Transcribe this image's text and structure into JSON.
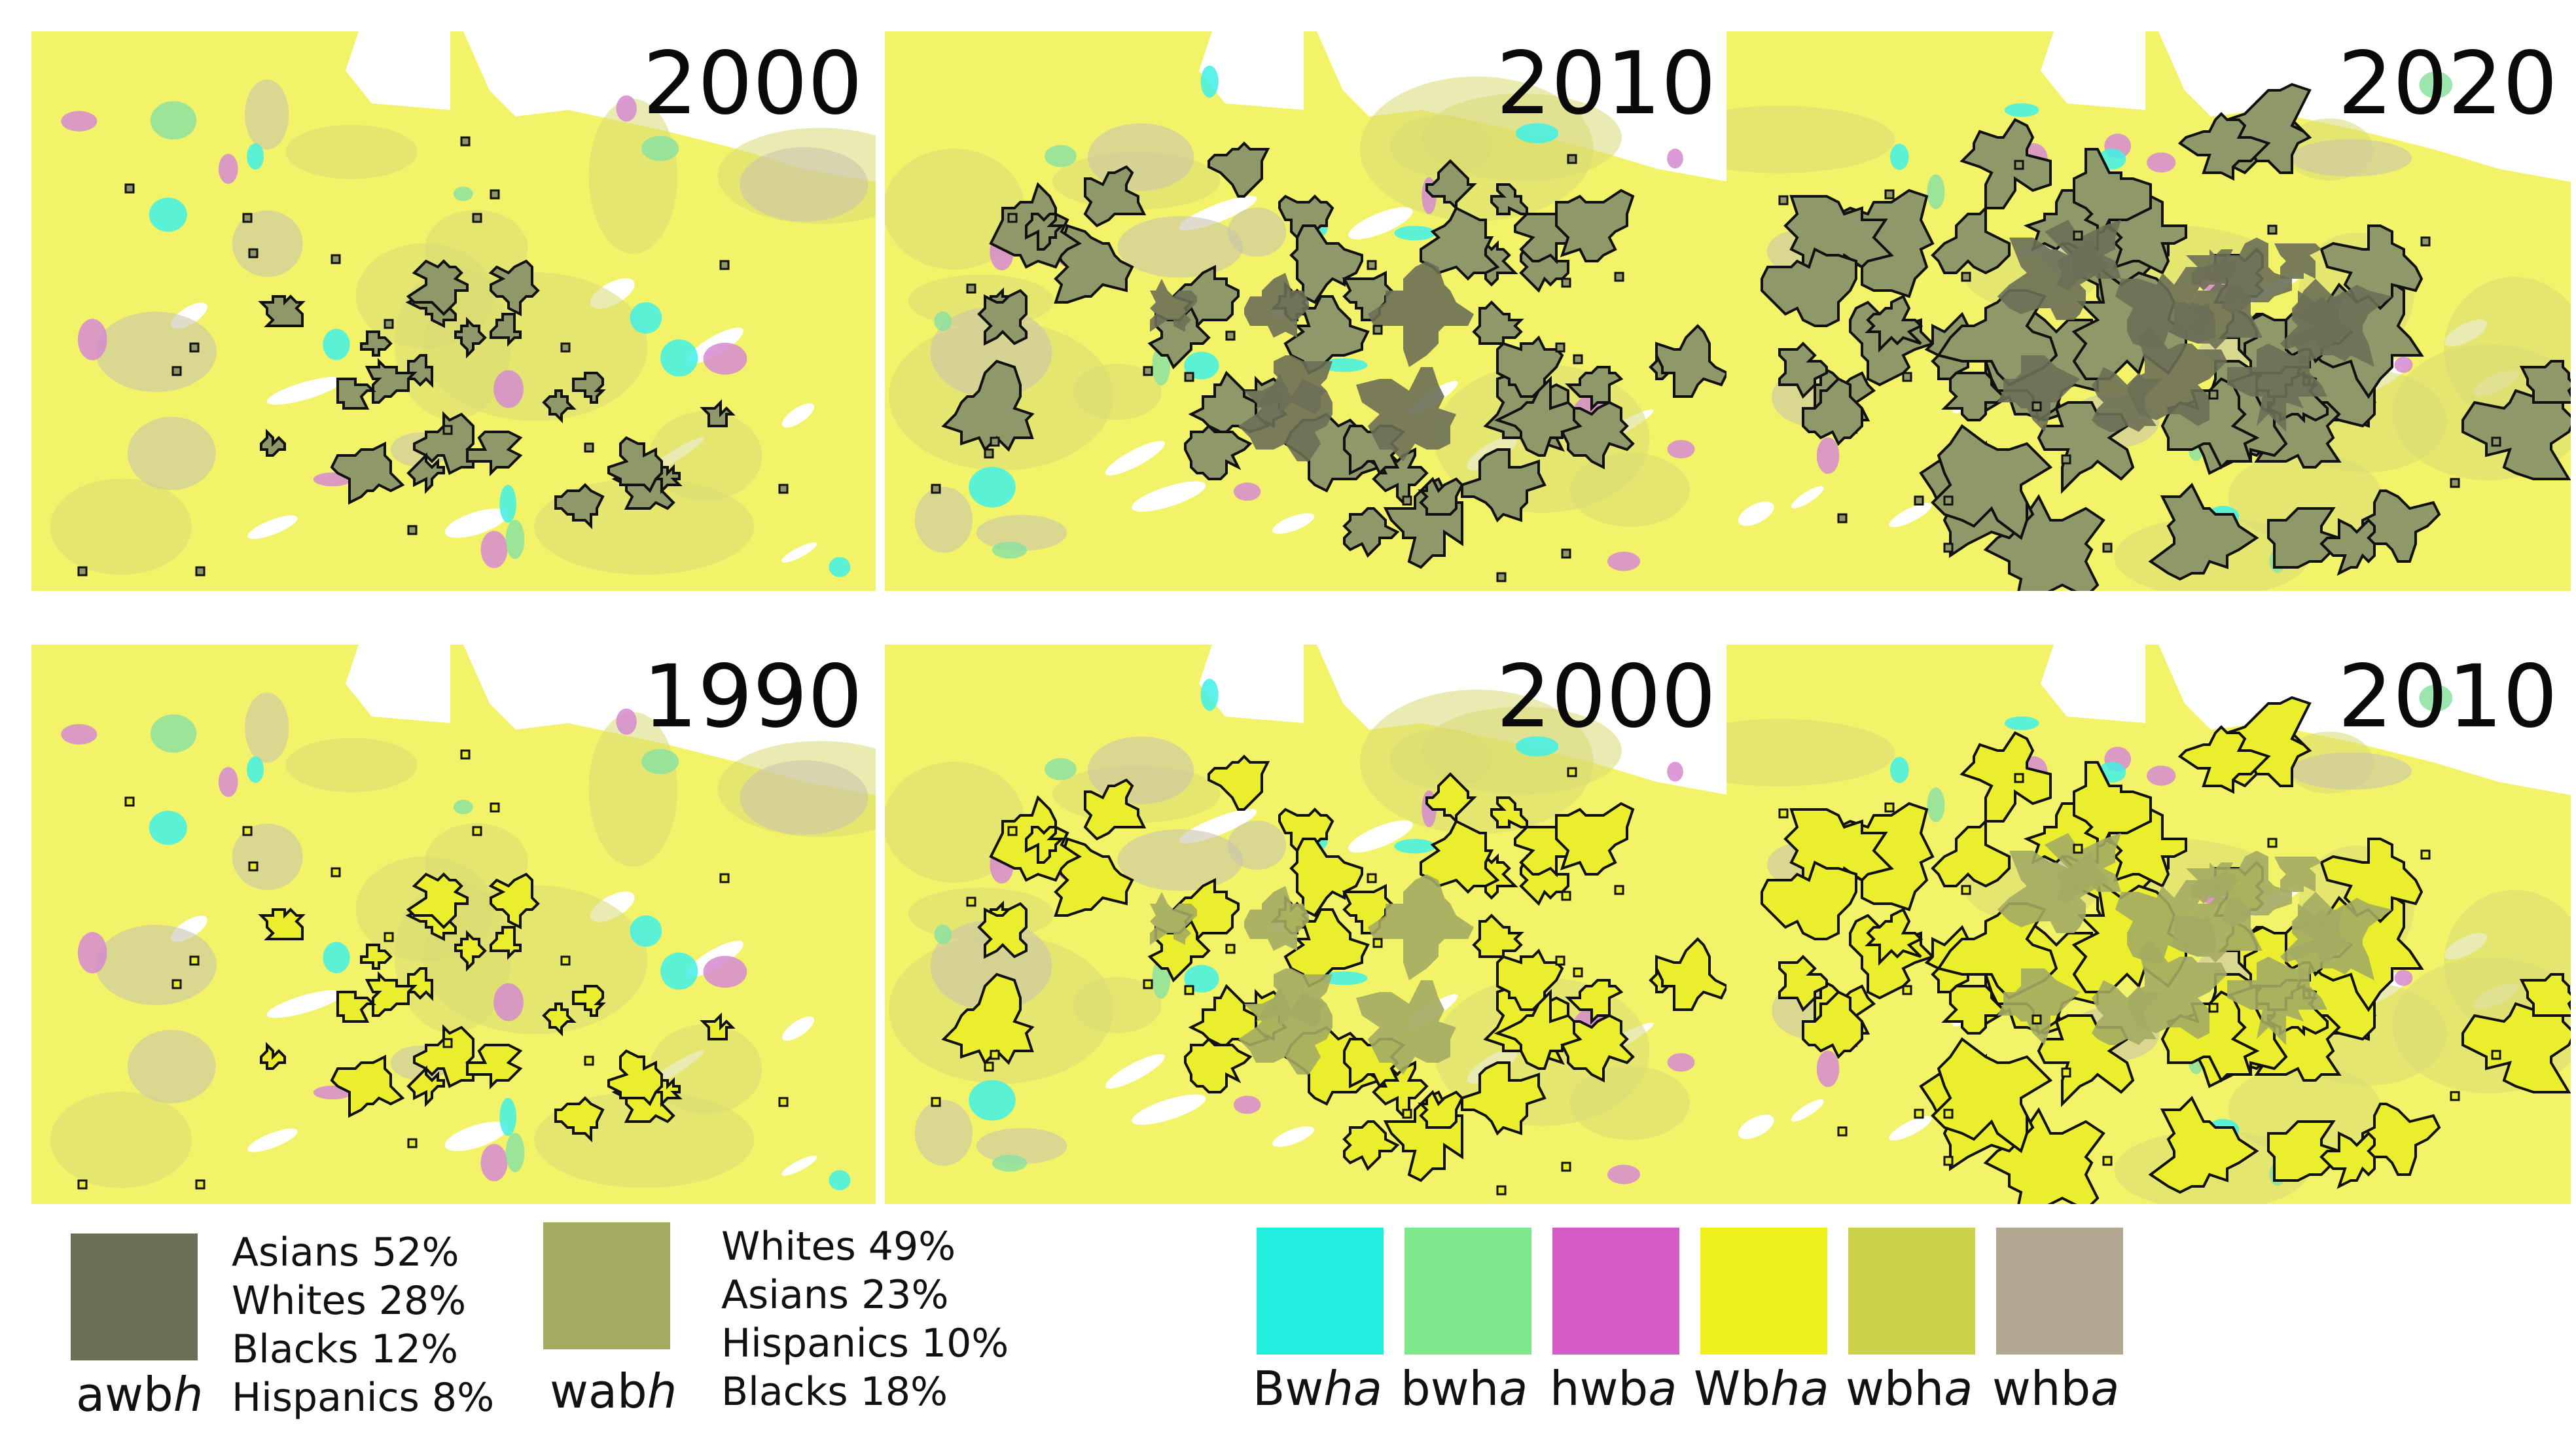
{
  "panels": [
    {
      "year": "2000",
      "stage": 1,
      "scheme": "dark"
    },
    {
      "year": "2010",
      "stage": 2,
      "scheme": "dark"
    },
    {
      "year": "2020",
      "stage": 3,
      "scheme": "dark"
    },
    {
      "year": "1990",
      "stage": 1,
      "scheme": "light"
    },
    {
      "year": "2000",
      "stage": 2,
      "scheme": "light"
    },
    {
      "year": "2010",
      "stage": 3,
      "scheme": "light"
    }
  ],
  "legend_main": [
    {
      "code_plain": "awb",
      "code_italic": "h",
      "color": "#6b6f55",
      "composition": [
        "Asians 52%",
        "Whites 28%",
        "Blacks 12%",
        "Hispanics 8%"
      ]
    },
    {
      "code_plain": "wab",
      "code_italic": "h",
      "color": "#a3ab63",
      "composition": [
        "Whites 49%",
        "Asians 23%",
        "Hispanics 10%",
        "Blacks 18%"
      ]
    }
  ],
  "legend_classes": [
    {
      "plain": "Bw",
      "italic": "ha",
      "color": "#22eee0"
    },
    {
      "plain": "bwh",
      "italic": "a",
      "color": "#7de88c"
    },
    {
      "plain": "hwb",
      "italic": "a",
      "color": "#d45cc4"
    },
    {
      "plain": "Wb",
      "italic": "ha",
      "color": "#eef01c"
    },
    {
      "plain": "wbh",
      "italic": "a",
      "color": "#ccd24a"
    },
    {
      "plain": "whb",
      "italic": "a",
      "color": "#b3a993"
    }
  ],
  "colors": {
    "background": "#f3f36a",
    "awbh_light": "#8f9868",
    "hwba": "#d58ad0",
    "bwha": "#8be0a0",
    "Bwha": "#3ff0e8",
    "whba": "#c9c5ac",
    "wbha_mix": "#d9db74"
  }
}
